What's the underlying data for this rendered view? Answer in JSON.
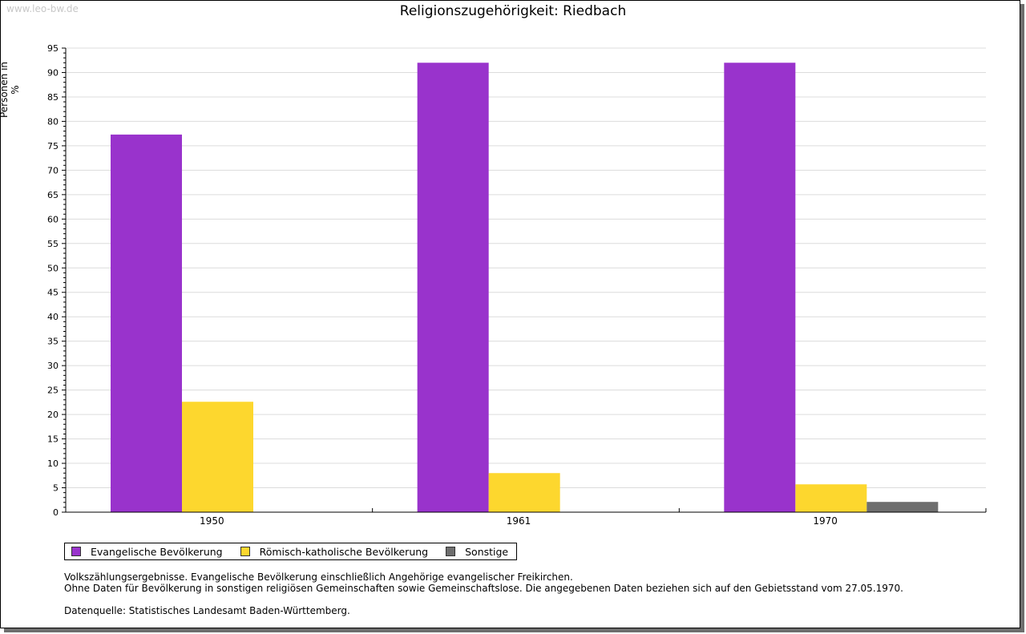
{
  "watermark": "www.leo-bw.de",
  "chart_data": {
    "type": "bar",
    "title": "Religionszugehörigkeit: Riedbach",
    "ylabel": "Personen in %",
    "xlabel": "",
    "ylim": [
      0,
      95
    ],
    "yticks": [
      0,
      5,
      10,
      15,
      20,
      25,
      30,
      35,
      40,
      45,
      50,
      55,
      60,
      65,
      70,
      75,
      80,
      85,
      90,
      95
    ],
    "categories": [
      "1950",
      "1961",
      "1970"
    ],
    "series": [
      {
        "name": "Evangelische Bevölkerung",
        "color": "#9933cc",
        "values": [
          77.3,
          92.0,
          92.0
        ]
      },
      {
        "name": "Römisch-katholische Bevölkerung",
        "color": "#fdd72e",
        "values": [
          22.6,
          8.0,
          5.7
        ]
      },
      {
        "name": "Sonstige",
        "color": "#6e6e6e",
        "values": [
          0,
          0,
          2.1
        ]
      }
    ],
    "grid": true,
    "legend": "bottom-left"
  },
  "notes": {
    "line1": "Volkszählungsergebnisse. Evangelische Bevölkerung einschließlich Angehörige evangelischer Freikirchen.",
    "line2": "Ohne Daten für Bevölkerung in sonstigen religiösen Gemeinschaften sowie Gemeinschaftslose. Die angegebenen Daten beziehen sich auf den Gebietsstand vom 27.05.1970.",
    "source": "Datenquelle: Statistisches Landesamt Baden-Württemberg."
  }
}
